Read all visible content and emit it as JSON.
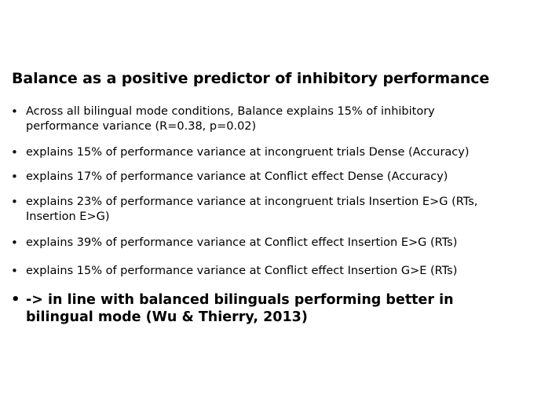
{
  "slide": {
    "title": "Balance as a positive predictor of inhibitory performance",
    "bullet_symbol": "•",
    "bullets": [
      {
        "text": "Across all bilingual mode conditions, Balance explains 15% of inhibitory\nperformance variance (R=0.38, p=0.02)"
      },
      {
        "text": "explains 15% of performance variance at incongruent trials Dense (Accuracy)"
      },
      {
        "text": "explains 17% of performance variance at Conflict effect Dense (Accuracy)"
      },
      {
        "text": "explains 23% of performance variance at incongruent trials Insertion E>G (RTs,\nInsertion E>G)"
      },
      {
        "text": "explains 39% of performance variance at Conflict effect Insertion E>G (RTs)"
      },
      {
        "text": "explains 15% of performance variance at Conflict effect Insertion G>E (RTs)"
      },
      {
        "text": "-> in line with balanced bilinguals performing better in\nbilingual mode (Wu & Thierry, 2013)"
      }
    ]
  }
}
